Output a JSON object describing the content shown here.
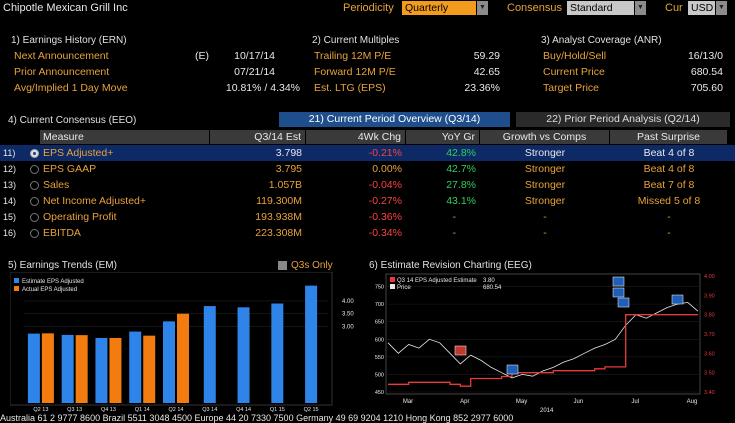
{
  "header": {
    "ticker": "Chipotle Mexican Grill Inc",
    "periodicity_label": "Periodicity",
    "periodicity_value": "Quarterly",
    "consensus_label": "Consensus",
    "consensus_value": "Standard",
    "cur_label": "Cur",
    "cur_value": "USD"
  },
  "earnings_history": {
    "title": "1) Earnings History (ERN)",
    "next_label": "Next Announcement",
    "next_flag": "(E)",
    "next_value": "10/17/14",
    "prior_label": "Prior Announcement",
    "prior_value": "07/21/14",
    "move_label": "Avg/Implied 1 Day Move",
    "move_value": "10.81% / 4.34%"
  },
  "multiples": {
    "title": "2) Current Multiples",
    "trailing_label": "Trailing 12M P/E",
    "trailing_value": "59.29",
    "forward_label": "Forward 12M P/E",
    "forward_value": "42.65",
    "ltg_label": "Est. LTG (EPS)",
    "ltg_value": "23.36%"
  },
  "analyst": {
    "title": "3) Analyst Coverage (ANR)",
    "bhs_label": "Buy/Hold/Sell",
    "bhs_value": "16/13/0",
    "price_label": "Current Price",
    "price_value": "680.54",
    "target_label": "Target Price",
    "target_value": "705.60"
  },
  "consensus": {
    "title": "4) Current Consensus (EEO)",
    "tab_current": "21) Current Period Overview (Q3/14)",
    "tab_prior": "22) Prior Period Analysis (Q2/14)",
    "headers": [
      "Measure",
      "Q3/14 Est",
      "4Wk Chg",
      "YoY Gr",
      "Growth vs Comps",
      "Past Surprise"
    ],
    "rows": [
      {
        "num": "11)",
        "measure": "EPS Adjusted+",
        "est": "3.798",
        "chg": "-0.21%",
        "yoy": "42.8%",
        "comps": "Stronger",
        "surprise": "Beat 4 of 8"
      },
      {
        "num": "12)",
        "measure": "EPS GAAP",
        "est": "3.795",
        "chg": "0.00%",
        "yoy": "42.7%",
        "comps": "Stronger",
        "surprise": "Beat 4 of 8"
      },
      {
        "num": "13)",
        "measure": "Sales",
        "est": "1.057B",
        "chg": "-0.04%",
        "yoy": "27.8%",
        "comps": "Stronger",
        "surprise": "Beat 7 of 8"
      },
      {
        "num": "14)",
        "measure": "Net Income Adjusted+",
        "est": "119.300M",
        "chg": "-0.27%",
        "yoy": "43.1%",
        "comps": "Stronger",
        "surprise": "Missed 5 of 8"
      },
      {
        "num": "15)",
        "measure": "Operating Profit",
        "est": "193.938M",
        "chg": "-0.36%",
        "yoy": "-",
        "comps": "-",
        "surprise": "-"
      },
      {
        "num": "16)",
        "measure": "EBITDA",
        "est": "223.308M",
        "chg": "-0.34%",
        "yoy": "-",
        "comps": "-",
        "surprise": "-"
      }
    ]
  },
  "trends": {
    "title": "5) Earnings Trends (EM)",
    "q3s_label": "Q3s Only",
    "legend_estimate": "Estimate EPS Adjusted",
    "legend_actual": "Actual EPS Adjusted",
    "estimate_color": "#2e84e8",
    "actual_color": "#f27c10"
  },
  "revision": {
    "title": "6) Estimate Revision Charting (EEG)",
    "legend_est": "Q3 14 EPS Adjusted Estimate",
    "legend_est_value": "3.80",
    "legend_price": "Price",
    "legend_price_value": "680.54",
    "year_label": "2014"
  },
  "chart_data": [
    {
      "type": "bar",
      "categories": [
        "Q2 13",
        "Q3 13",
        "Q4 13",
        "Q1 14",
        "Q2 14",
        "Q3 14",
        "Q4 14",
        "Q1 15",
        "Q2 15"
      ],
      "series": [
        {
          "name": "Estimate EPS Adjusted",
          "values": [
            2.72,
            2.67,
            2.55,
            2.8,
            3.2,
            3.8,
            3.75,
            3.9,
            4.6
          ]
        },
        {
          "name": "Actual EPS Adjusted",
          "values": [
            2.73,
            2.66,
            2.55,
            2.64,
            3.5,
            null,
            null,
            null,
            null
          ]
        }
      ],
      "yticks": [
        3.0,
        3.5,
        4.0
      ],
      "ylim": [
        0,
        4.9
      ]
    },
    {
      "type": "line",
      "x_labels": [
        "Mar",
        "Apr",
        "May",
        "Jun",
        "Jul",
        "Aug"
      ],
      "left_ticks": [
        450,
        500,
        550,
        600,
        650,
        700,
        750
      ],
      "left_ylim": [
        450,
        780
      ],
      "right_ticks": [
        3.4,
        3.5,
        3.6,
        3.7,
        3.8,
        3.9,
        4.0
      ],
      "right_ylim": [
        3.4,
        4.0
      ],
      "series": [
        {
          "name": "Price",
          "values": [
            590,
            560,
            585,
            575,
            600,
            590,
            560,
            530,
            555,
            540,
            520,
            505,
            490,
            500,
            495,
            510,
            520,
            535,
            545,
            560,
            575,
            585,
            600,
            640,
            670,
            660,
            675,
            690,
            700,
            705,
            680
          ]
        },
        {
          "name": "Q3 14 EPS Adjusted Estimate",
          "values": [
            3.44,
            3.44,
            3.45,
            3.45,
            3.45,
            3.45,
            3.44,
            3.43,
            3.47,
            3.47,
            3.47,
            3.48,
            3.5,
            3.5,
            3.5,
            3.5,
            3.51,
            3.51,
            3.51,
            3.51,
            3.52,
            3.53,
            3.53,
            3.8,
            3.8,
            3.8,
            3.8,
            3.8,
            3.8,
            3.8,
            3.8
          ]
        }
      ]
    }
  ],
  "footer": {
    "text": "Australia 61 2 9777 8600  Brazil 5511 3048 4500  Europe 44 20 7330 7500  Germany 49 69 9204 1210  Hong Kong 852 2977 6000"
  }
}
